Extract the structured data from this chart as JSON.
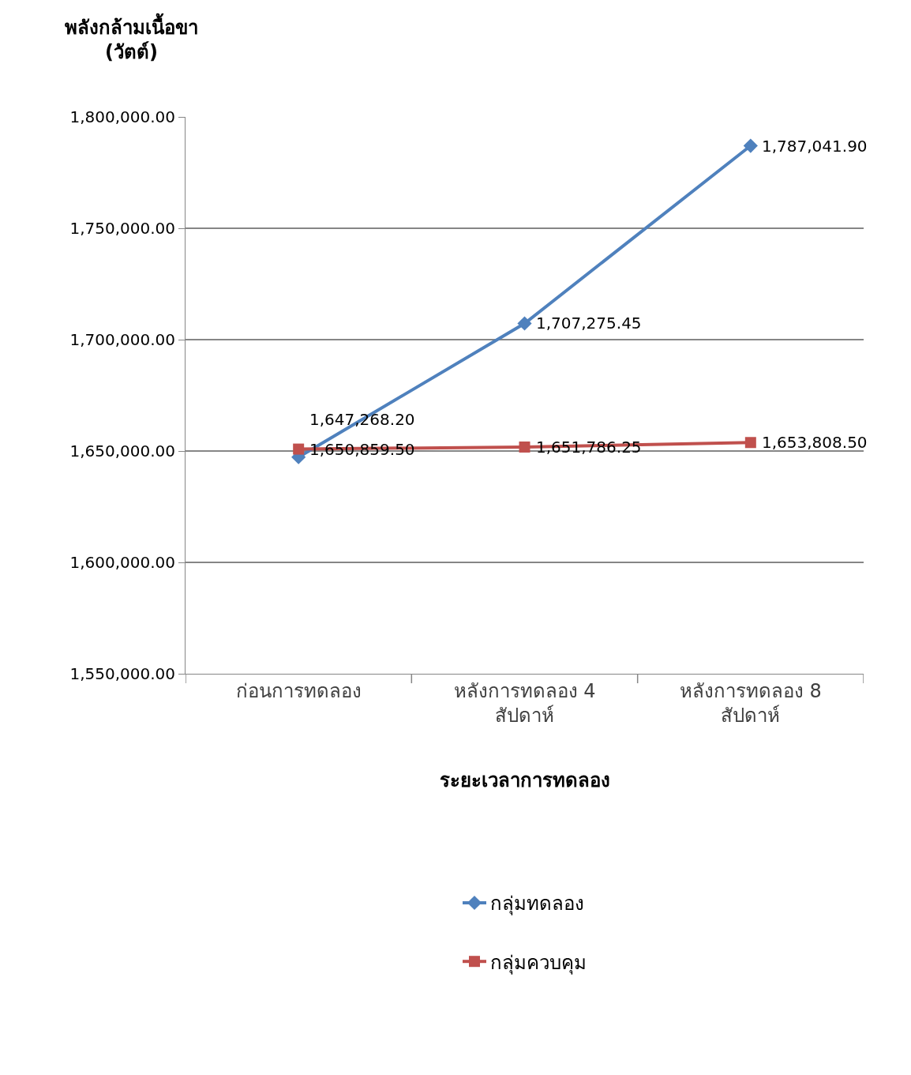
{
  "chart_data": {
    "type": "line",
    "ylabel": "พลังกล้ามเนื้อขา (วัตต์)",
    "xlabel": "ระยะเวลาการทดลอง",
    "categories": [
      "ก่อนการทดลอง",
      "หลังการทดลอง 4 สัปดาห์",
      "หลังการทดลอง 8 สัปดาห์"
    ],
    "series": [
      {
        "name": "กลุ่มทดลอง",
        "color": "#4f81bd",
        "marker": "diamond",
        "values": [
          1647268.2,
          1707275.45,
          1787041.9
        ],
        "value_labels": [
          "1,647,268.20",
          "1,707,275.45",
          "1,787,041.90"
        ]
      },
      {
        "name": "กลุ่มควบคุม",
        "color": "#c0504d",
        "marker": "square",
        "values": [
          1650859.5,
          1651786.25,
          1653808.5
        ],
        "value_labels": [
          "1,650,859.50",
          "1,651,786.25",
          "1,653,808.50"
        ]
      }
    ],
    "ylim": [
      1550000,
      1800000
    ],
    "yticks": [
      {
        "value": 1550000,
        "label": "1,550,000.00"
      },
      {
        "value": 1600000,
        "label": "1,600,000.00"
      },
      {
        "value": 1650000,
        "label": "1,650,000.00"
      },
      {
        "value": 1700000,
        "label": "1,700,000.00"
      },
      {
        "value": 1750000,
        "label": "1,750,000.00"
      },
      {
        "value": 1800000,
        "label": "1,800,000.00"
      }
    ],
    "grid": "y",
    "legend": "bottom",
    "line_style": "solid"
  }
}
